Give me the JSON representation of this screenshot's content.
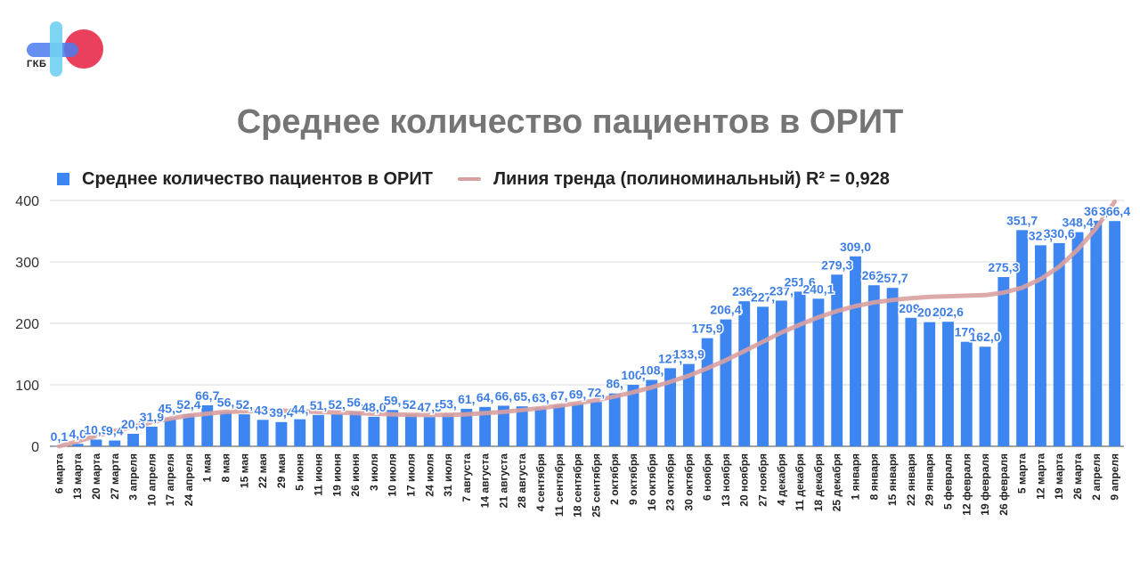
{
  "logo": {
    "text": "ГКБ"
  },
  "chart_data": {
    "type": "bar",
    "title": "Среднее количество пациентов в ОРИТ",
    "legend_position": "top-left",
    "grid": true,
    "ylim": [
      0,
      400
    ],
    "yticks": [
      "0",
      "100",
      "200",
      "300",
      "400"
    ],
    "colors": {
      "bar": "#3d85f0",
      "trend": "#d9a0a0",
      "label": "#3d7ee6",
      "grid": "#d8d8d8"
    },
    "series": [
      {
        "name": "Среднее количество пациентов в ОРИТ",
        "kind": "bar",
        "values": [
          0.1,
          4.0,
          10.9,
          9.4,
          20.3,
          31.9,
          45.5,
          52.4,
          66.7,
          56.0,
          52.0,
          43.0,
          39.4,
          44.0,
          51.0,
          52.0,
          56.0,
          48.0,
          59.0,
          52.0,
          47.5,
          53.0,
          61.0,
          64.0,
          66.0,
          65.0,
          63.0,
          67.0,
          69.0,
          72.0,
          86.0,
          100.0,
          108.0,
          127.0,
          133.9,
          175.9,
          206.4,
          236.0,
          227.0,
          237.0,
          251.6,
          240.1,
          279.3,
          309.0,
          262.0,
          257.7,
          209.0,
          202.0,
          202.6,
          170.0,
          162.0,
          275.3,
          351.7,
          327.0,
          330.6,
          348.4,
          367.0,
          366.4
        ]
      },
      {
        "name": "Линия тренда (полиноминальный) R² = 0,928",
        "kind": "trend",
        "r_squared": 0.928,
        "values": [
          0,
          8,
          17,
          25,
          32,
          39,
          45,
          50,
          53,
          56,
          57,
          58,
          58,
          57,
          56,
          55,
          54,
          53,
          52,
          51,
          51,
          51,
          52,
          54,
          56,
          59,
          62,
          66,
          70,
          75,
          81,
          88,
          96,
          105,
          115,
          127,
          140,
          155,
          170,
          185,
          198,
          210,
          220,
          228,
          234,
          238,
          241,
          243,
          244,
          245,
          246,
          250,
          258,
          272,
          292,
          320,
          355,
          398
        ]
      }
    ],
    "data_labels": [
      "0,1",
      "4,0",
      "10,9",
      "9,4",
      "20,3",
      "31,9",
      "45,5",
      "52,4",
      "66,7",
      "56,",
      "52,",
      "43,",
      "39,4",
      "44,",
      "51,",
      "52,",
      "56,",
      "48,0",
      "59,",
      "52,",
      "47,5",
      "53,",
      "61,",
      "64,",
      "66,",
      "65,",
      "63,",
      "67,",
      "69,",
      "72,",
      "86,",
      "100,",
      "108,",
      "127,",
      "133,9",
      "175,9",
      "206,4",
      "236,",
      "227,",
      "237,",
      "251,6",
      "240,1",
      "279,3",
      "309,0",
      "262,",
      "257,7",
      "209,",
      "202,",
      "202,6",
      "170,",
      "162,0",
      "275,3",
      "351,7",
      "327,",
      "330,6",
      "348,4",
      "367,",
      "366,4"
    ],
    "categories": [
      "6 марта",
      "13 марта",
      "20 марта",
      "27 марта",
      "3 апреля",
      "10 апреля",
      "17 апреля",
      "24 апреля",
      "1 мая",
      "8 мая",
      "15 мая",
      "22 мая",
      "29 мая",
      "5 июня",
      "11 июня",
      "19 июня",
      "26 июня",
      "3 июля",
      "10 июля",
      "17 июля",
      "24 июля",
      "31 июля",
      "7 августа",
      "14 августа",
      "21 августа",
      "28 августа",
      "4 сентября",
      "11 сентября",
      "18 сентября",
      "25 сентября",
      "2 октября",
      "9 октября",
      "16 октября",
      "23 октября",
      "30 октября",
      "6 ноября",
      "13 ноября",
      "20 ноября",
      "27 ноября",
      "4 декабря",
      "11 декабря",
      "18 декабря",
      "25 декабря",
      "1 января",
      "8 января",
      "15 января",
      "22 января",
      "29 января",
      "5 февраля",
      "12 февраля",
      "19 февраля",
      "26 февраля",
      "5 марта",
      "12 марта",
      "19 марта",
      "26 марта",
      "2 апреля",
      "9 апреля"
    ]
  }
}
